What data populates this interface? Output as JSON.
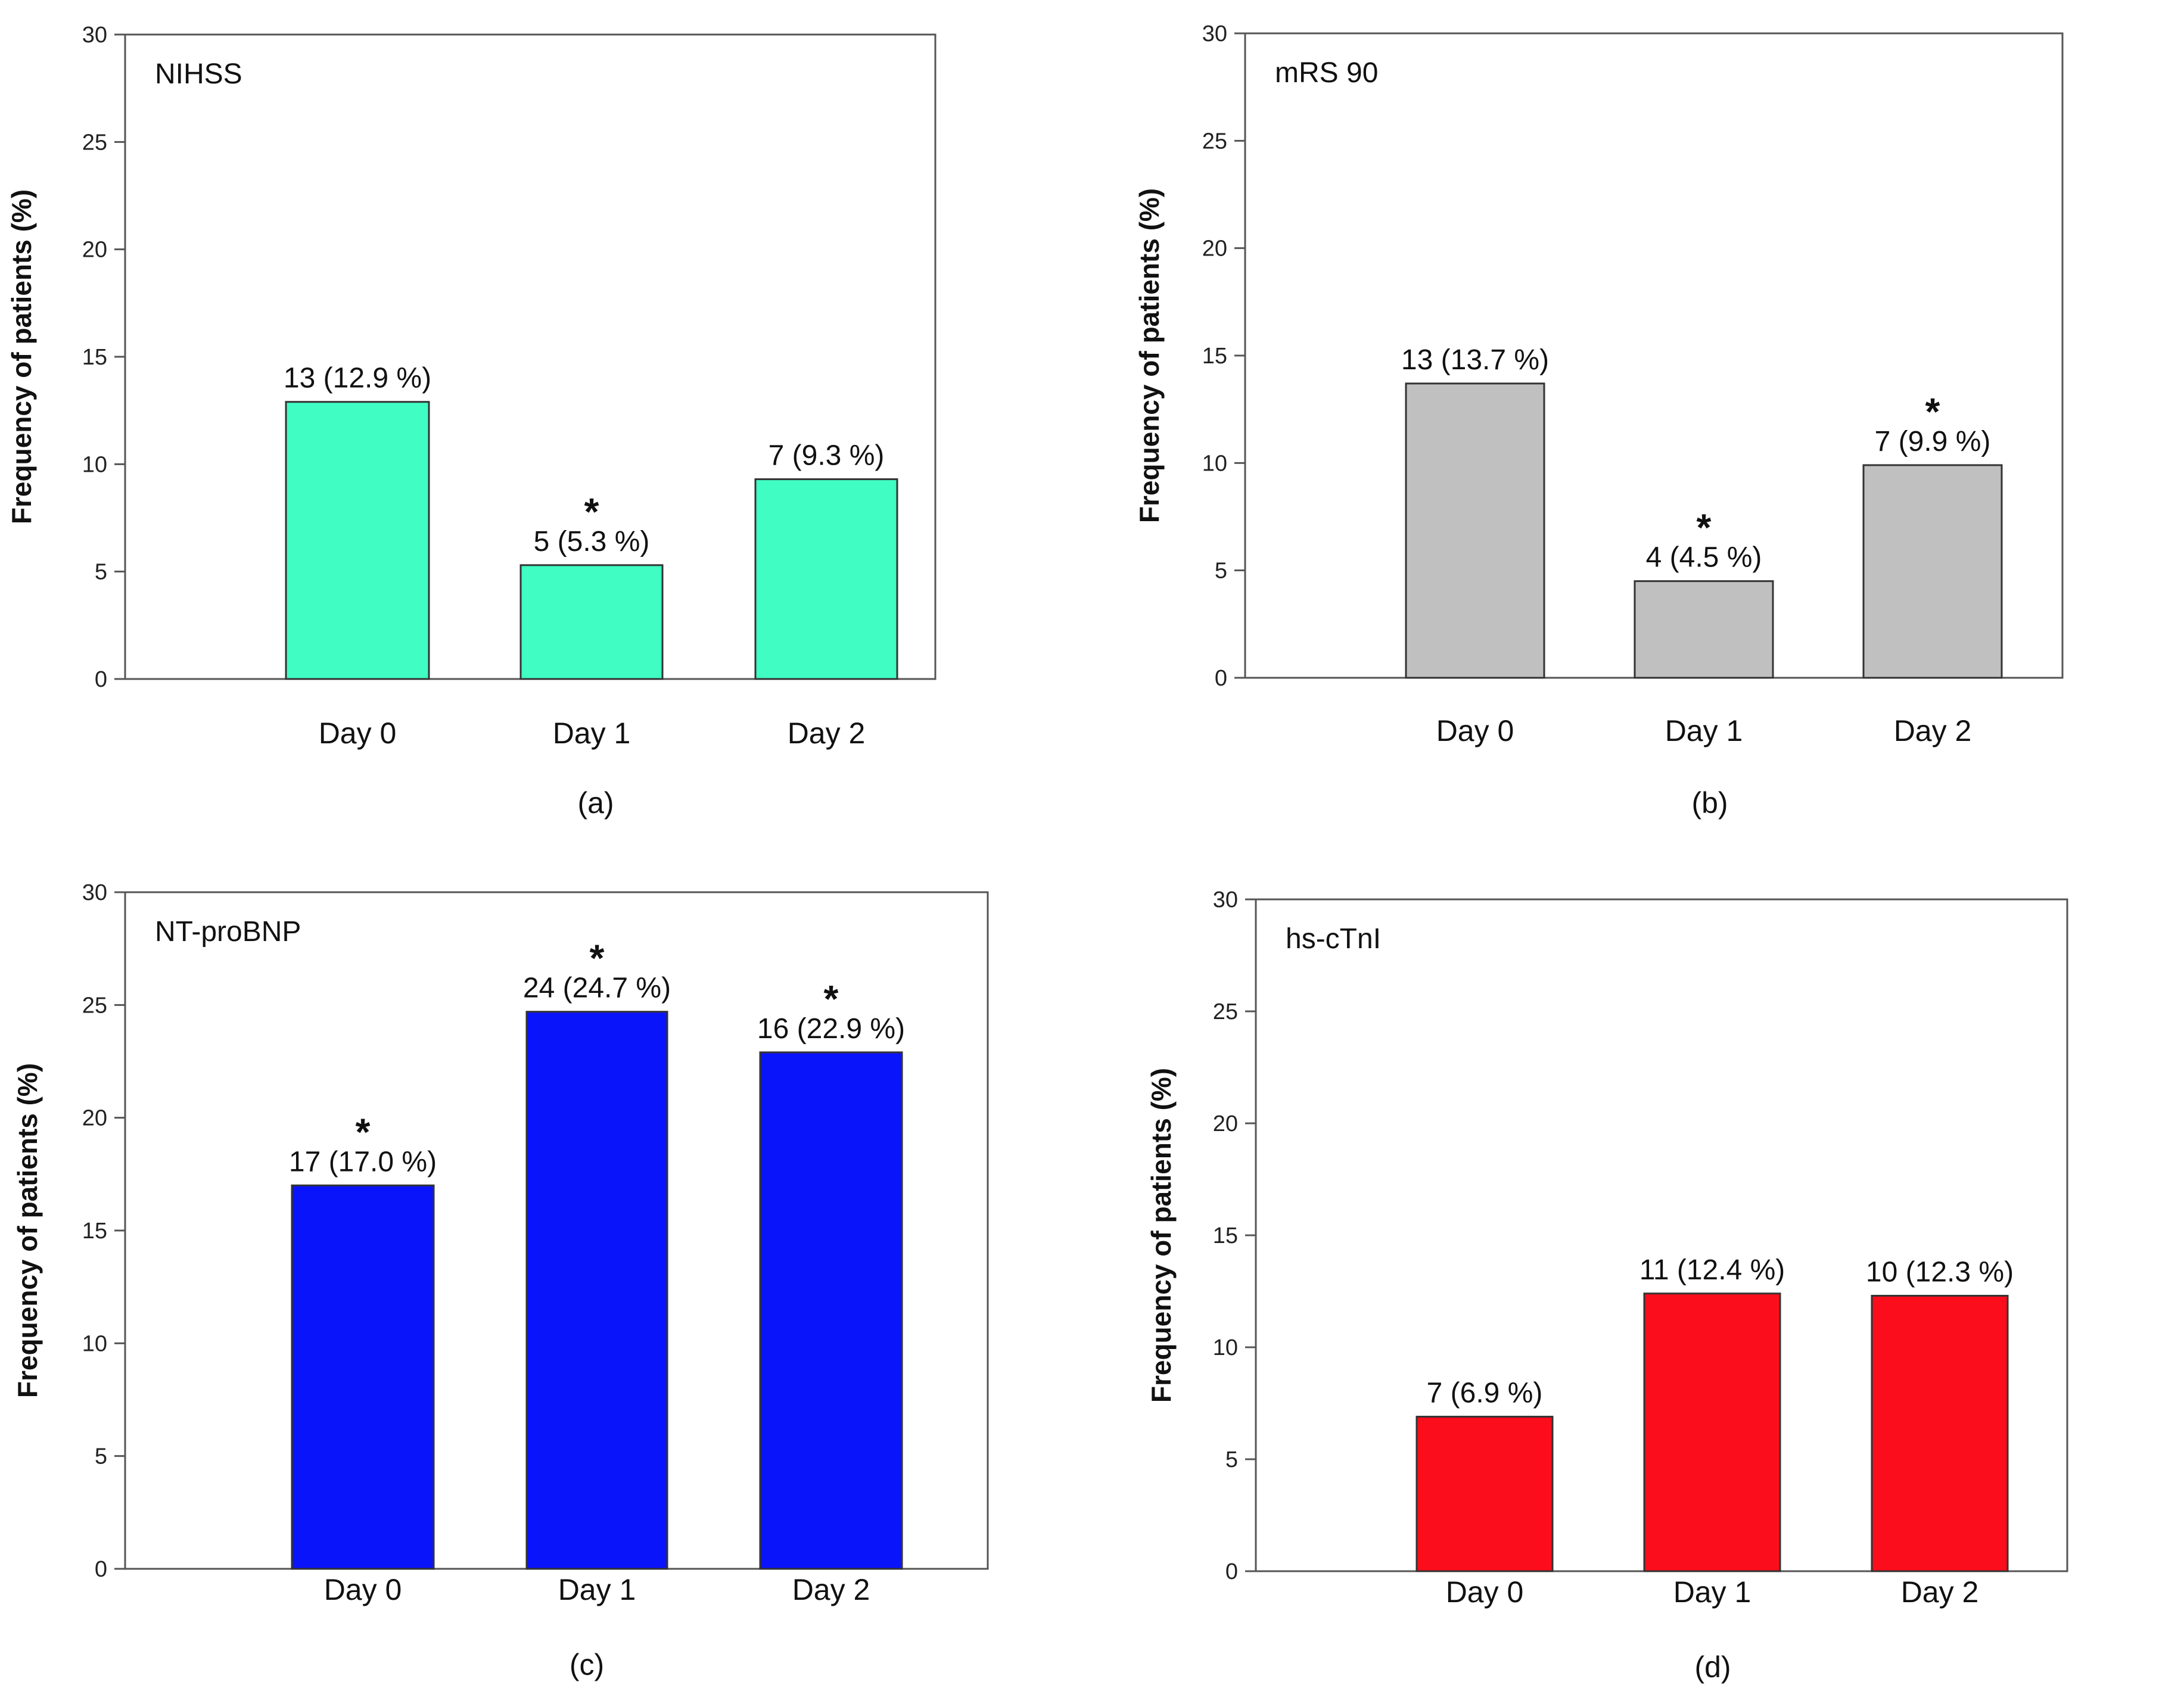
{
  "chart_data": [
    {
      "type": "bar",
      "panel": "(a)",
      "title": "NIHSS",
      "xlabel": "",
      "ylabel": "Frequency of patients (%)",
      "ylim": [
        0,
        30
      ],
      "yticks": [
        0,
        5,
        10,
        15,
        20,
        25,
        30
      ],
      "categories": [
        "Day 0",
        "Day 1",
        "Day 2"
      ],
      "values": [
        12.9,
        5.3,
        9.3
      ],
      "labels": [
        "13 (12.9 %)",
        "5 (5.3 %)",
        "7 (9.3 %)"
      ],
      "significant": [
        false,
        true,
        false
      ],
      "color": "#3ffdc3"
    },
    {
      "type": "bar",
      "panel": "(b)",
      "title": "mRS 90",
      "xlabel": "",
      "ylabel": "Frequency of patients (%)",
      "ylim": [
        0,
        30
      ],
      "yticks": [
        0,
        5,
        10,
        15,
        20,
        25,
        30
      ],
      "categories": [
        "Day 0",
        "Day 1",
        "Day 2"
      ],
      "values": [
        13.7,
        4.5,
        9.9
      ],
      "labels": [
        "13 (13.7 %)",
        "4 (4.5 %)",
        "7 (9.9 %)"
      ],
      "significant": [
        false,
        true,
        true
      ],
      "color": "#c0c0c0"
    },
    {
      "type": "bar",
      "panel": "(c)",
      "title": "NT-proBNP",
      "xlabel": "",
      "ylabel": "Frequency of patients (%)",
      "ylim": [
        0,
        30
      ],
      "yticks": [
        0,
        5,
        10,
        15,
        20,
        25,
        30
      ],
      "categories": [
        "Day 0",
        "Day 1",
        "Day 2"
      ],
      "values": [
        17.0,
        24.7,
        22.9
      ],
      "labels": [
        "17 (17.0 %)",
        "24 (24.7 %)",
        "16 (22.9 %)"
      ],
      "significant": [
        true,
        true,
        true
      ],
      "color": "#0a14fa"
    },
    {
      "type": "bar",
      "panel": "(d)",
      "title": "hs-cTnI",
      "xlabel": "",
      "ylabel": "Frequency of patients (%)",
      "ylim": [
        0,
        30
      ],
      "yticks": [
        0,
        5,
        10,
        15,
        20,
        25,
        30
      ],
      "categories": [
        "Day 0",
        "Day 1",
        "Day 2"
      ],
      "values": [
        6.9,
        12.4,
        12.3
      ],
      "labels": [
        "7 (6.9 %)",
        "11 (12.4 %)",
        "10 (12.3 %)"
      ],
      "significant": [
        false,
        false,
        false
      ],
      "color": "#fc0d1b"
    }
  ],
  "significance_marker": "*"
}
